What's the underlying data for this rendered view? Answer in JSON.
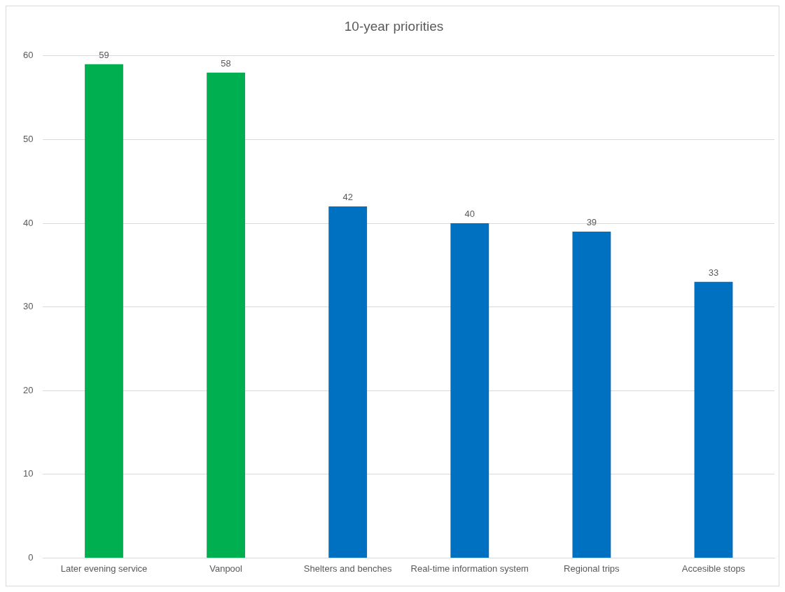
{
  "chart_data": {
    "type": "bar",
    "title": "10-year priorities",
    "categories": [
      "Later evening service",
      "Vanpool",
      "Shelters and benches",
      "Real-time information system",
      "Regional trips",
      "Accesible stops"
    ],
    "values": [
      59,
      58,
      42,
      40,
      39,
      33
    ],
    "colors": [
      "#00b050",
      "#00b050",
      "#0070c0",
      "#0070c0",
      "#0070c0",
      "#0070c0"
    ],
    "ylim": [
      0,
      60
    ],
    "yticks": [
      0,
      10,
      20,
      30,
      40,
      50,
      60
    ],
    "grid": "y",
    "data_labels": true,
    "legend": false
  }
}
